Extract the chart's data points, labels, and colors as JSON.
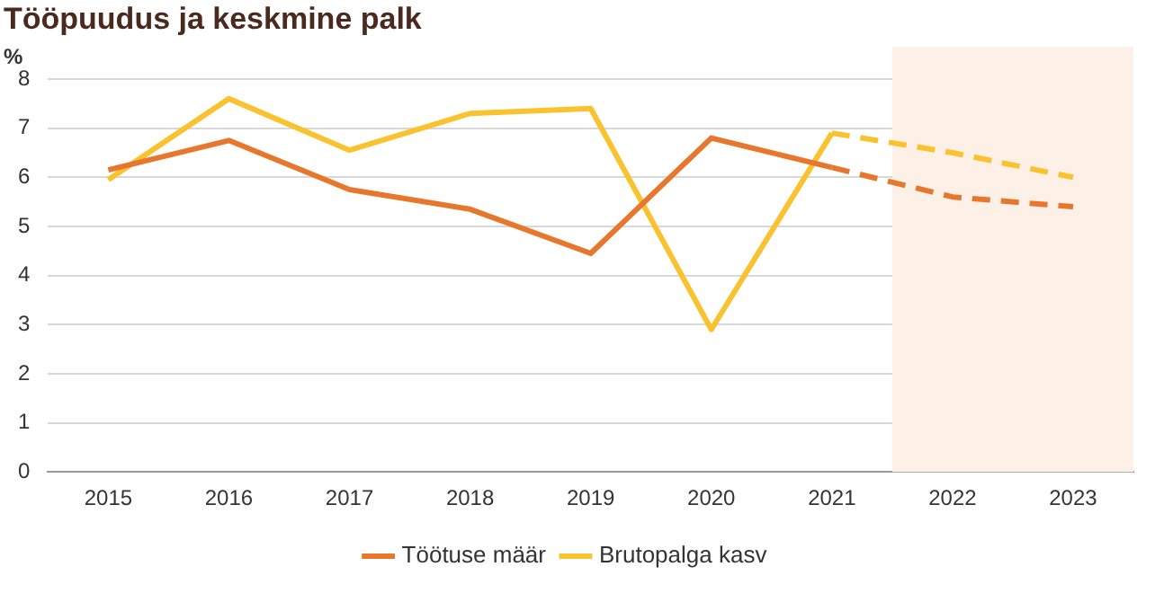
{
  "chart_data": {
    "type": "line",
    "title": "Tööpuudus ja keskmine palk",
    "ylabel": "%",
    "categories": [
      "2015",
      "2016",
      "2017",
      "2018",
      "2019",
      "2020",
      "2021",
      "2022",
      "2023"
    ],
    "series": [
      {
        "name": "Töötuse määr",
        "color": "#e8772e",
        "line_style": "solid",
        "values": [
          6.15,
          6.75,
          5.75,
          5.35,
          4.45,
          6.8,
          6.2,
          null,
          null
        ]
      },
      {
        "name": "Brutopalga kasv",
        "color": "#f9c22e",
        "line_style": "solid",
        "values": [
          5.95,
          7.6,
          6.55,
          7.3,
          7.4,
          2.9,
          6.9,
          null,
          null
        ]
      },
      {
        "color": "#e8772e",
        "line_style": "dashed",
        "values": [
          null,
          null,
          null,
          null,
          null,
          null,
          6.2,
          5.6,
          5.4
        ]
      },
      {
        "color": "#f9c22e",
        "line_style": "dashed",
        "values": [
          null,
          null,
          null,
          null,
          null,
          null,
          6.9,
          6.5,
          6.0
        ]
      }
    ],
    "bands": [
      {
        "axis": "x",
        "from": "2022",
        "to": "2023",
        "color": "#fdf1e7"
      }
    ],
    "ylim": [
      0,
      8
    ],
    "yticks": [
      0,
      1,
      2,
      3,
      4,
      5,
      6,
      7,
      8
    ],
    "grid": "y",
    "legend": "bottom",
    "marker": "none"
  }
}
